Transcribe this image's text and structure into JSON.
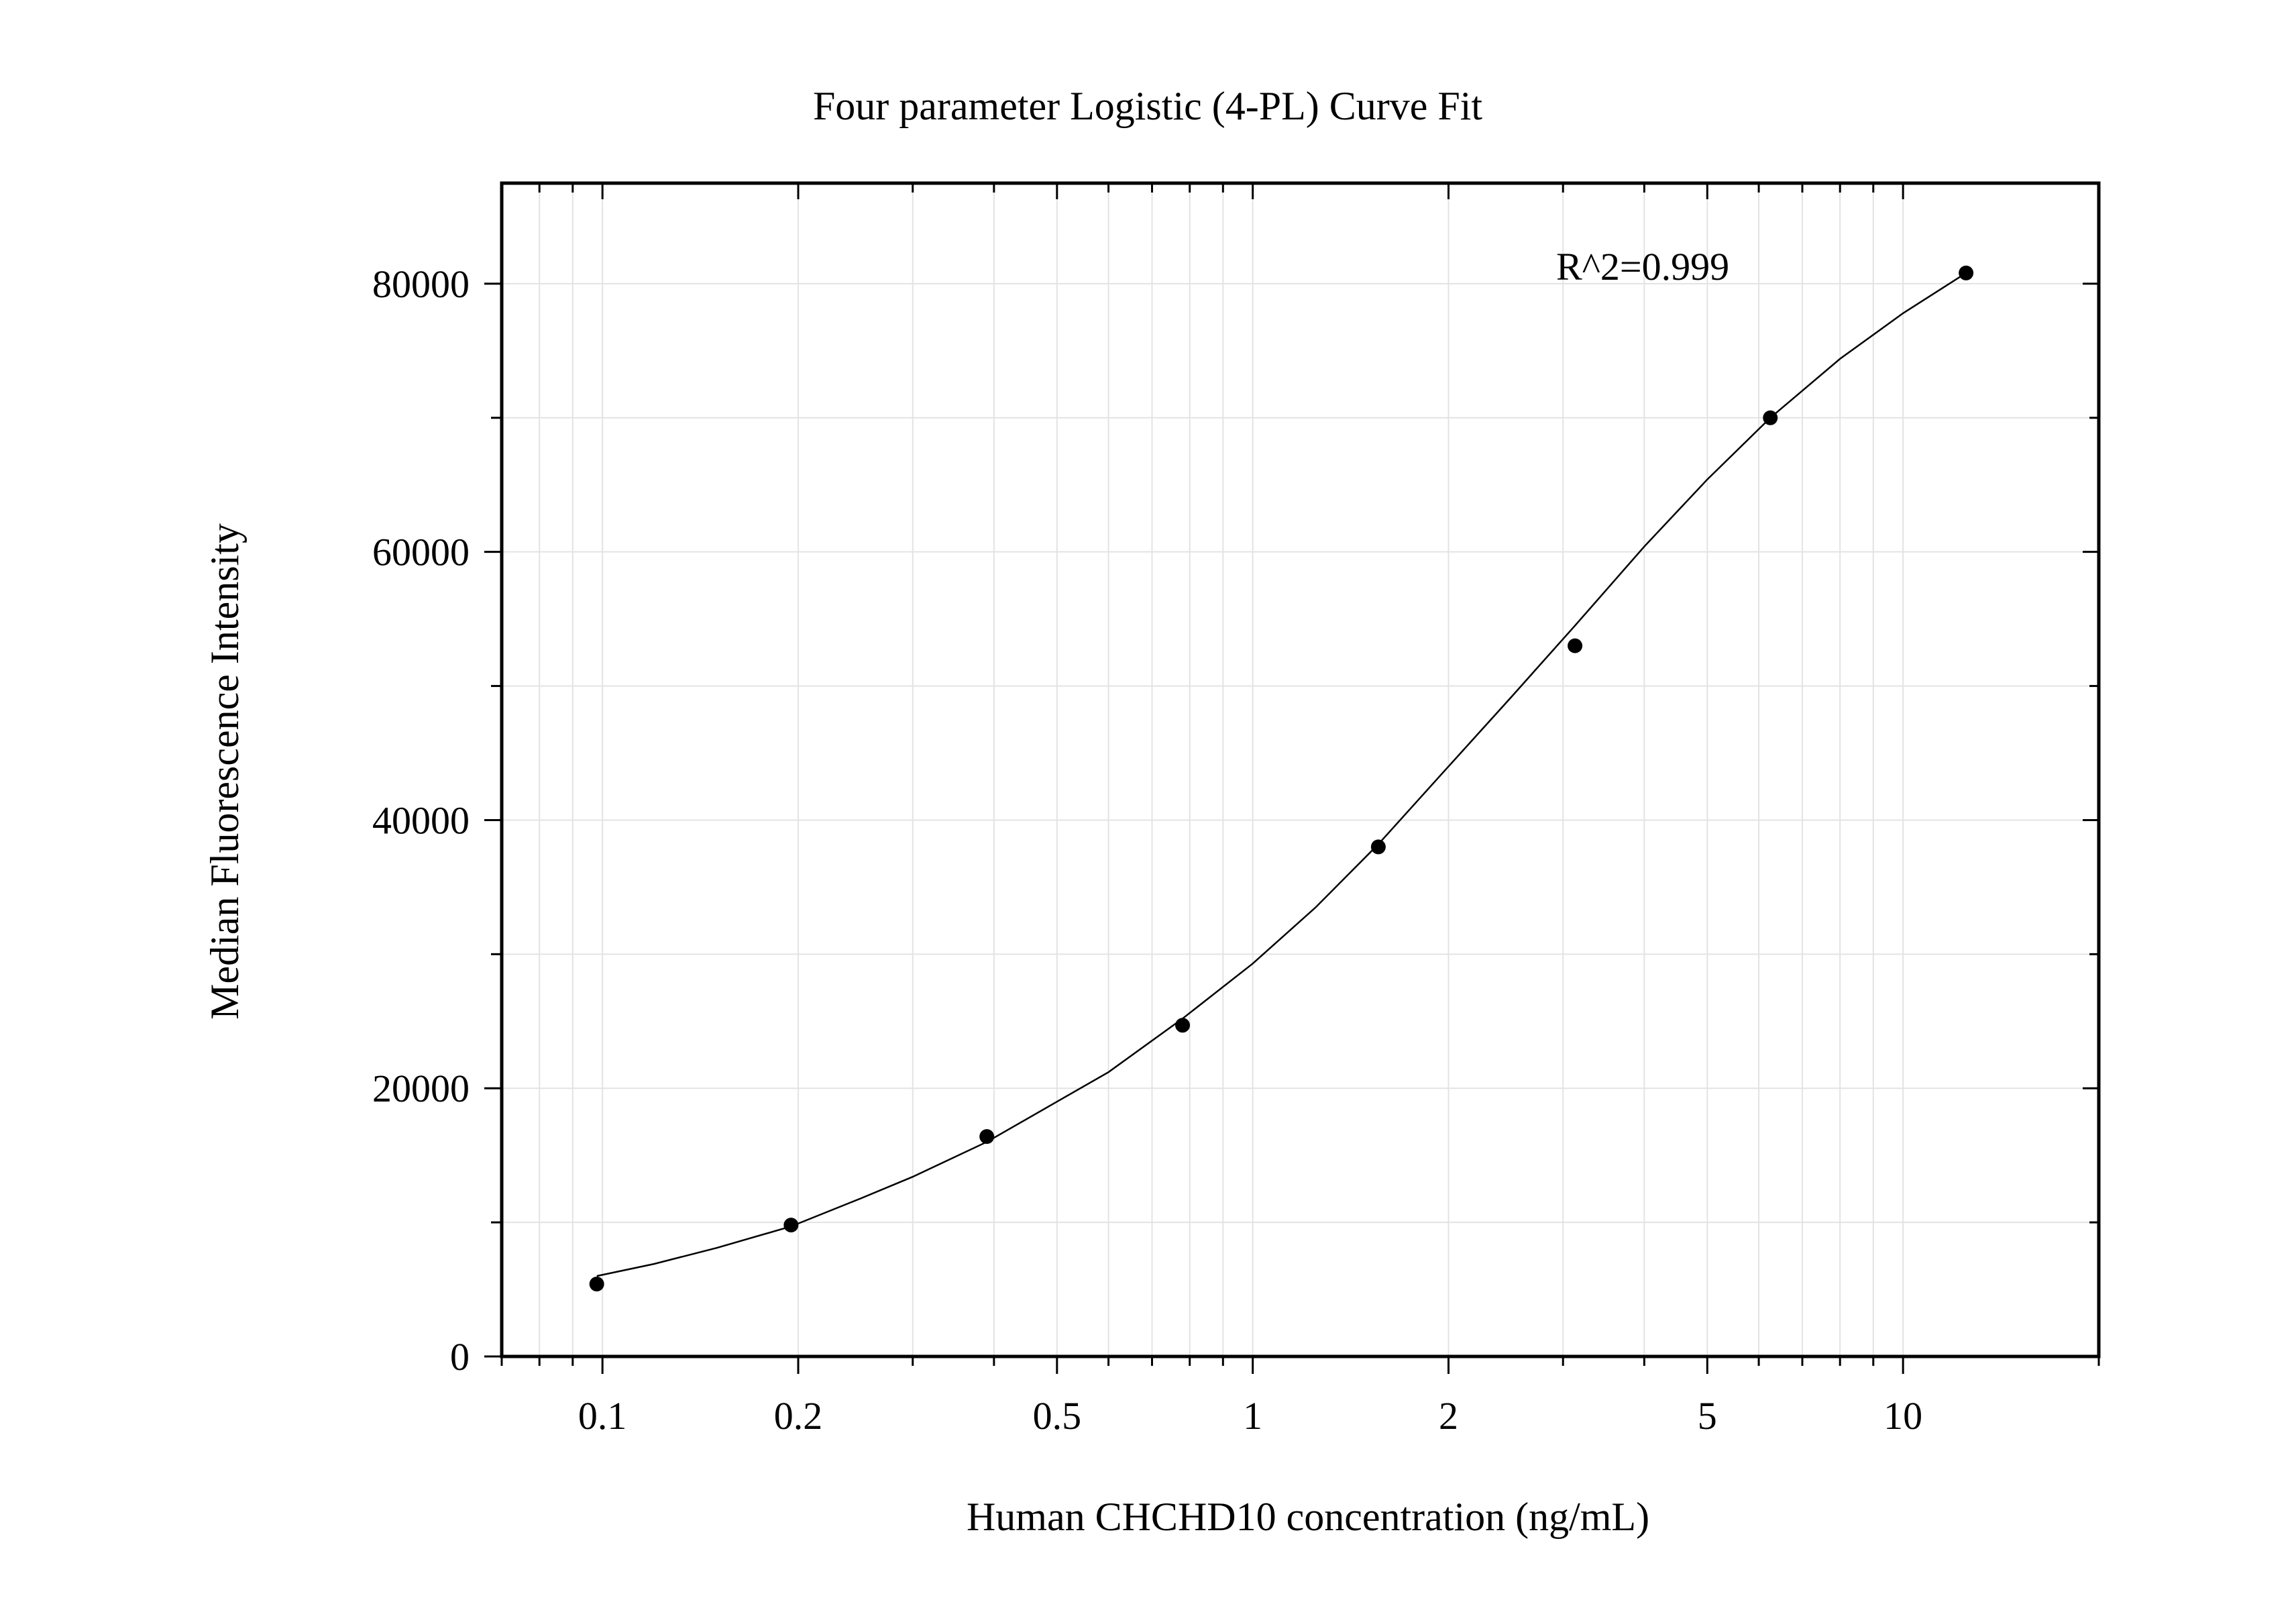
{
  "chart_data": {
    "type": "scatter",
    "title": "Four parameter Logistic (4-PL) Curve Fit",
    "xlabel": "Human CHCHD10 concentration (ng/mL)",
    "ylabel": "Median Fluorescence Intensity",
    "x_scale": "log",
    "xlim": [
      0.07,
      20
    ],
    "ylim": [
      0,
      87500
    ],
    "x_ticks": [
      0.1,
      0.2,
      0.5,
      1,
      2,
      5,
      10
    ],
    "x_tick_labels": [
      "0.1",
      "0.2",
      "0.5",
      "1",
      "2",
      "5",
      "10"
    ],
    "y_ticks": [
      0,
      20000,
      40000,
      60000,
      80000
    ],
    "y_tick_labels": [
      "0",
      "20000",
      "40000",
      "60000",
      "80000"
    ],
    "grid": true,
    "annotation": "R^2=0.999",
    "series": [
      {
        "x": [
          0.098,
          0.195,
          0.39,
          0.78,
          1.56,
          3.13,
          6.25,
          12.5
        ],
        "y": [
          5400,
          9800,
          16400,
          24700,
          38000,
          53000,
          70000,
          80800
        ]
      }
    ],
    "fit_curve": {
      "x": [
        0.098,
        0.12,
        0.15,
        0.195,
        0.25,
        0.3,
        0.39,
        0.5,
        0.6,
        0.78,
        1.0,
        1.25,
        1.56,
        2.0,
        2.5,
        3.13,
        4.0,
        5.0,
        6.25,
        8.0,
        10.0,
        12.5
      ],
      "y": [
        6000,
        6900,
        8100,
        9700,
        11800,
        13400,
        16000,
        19000,
        21200,
        25200,
        29300,
        33500,
        38200,
        44000,
        49200,
        54500,
        60400,
        65400,
        70000,
        74400,
        77800,
        80800
      ]
    },
    "colors": {
      "points": "#000000",
      "curve": "#000000",
      "grid": "#e3e3e3",
      "frame": "#000000"
    }
  }
}
